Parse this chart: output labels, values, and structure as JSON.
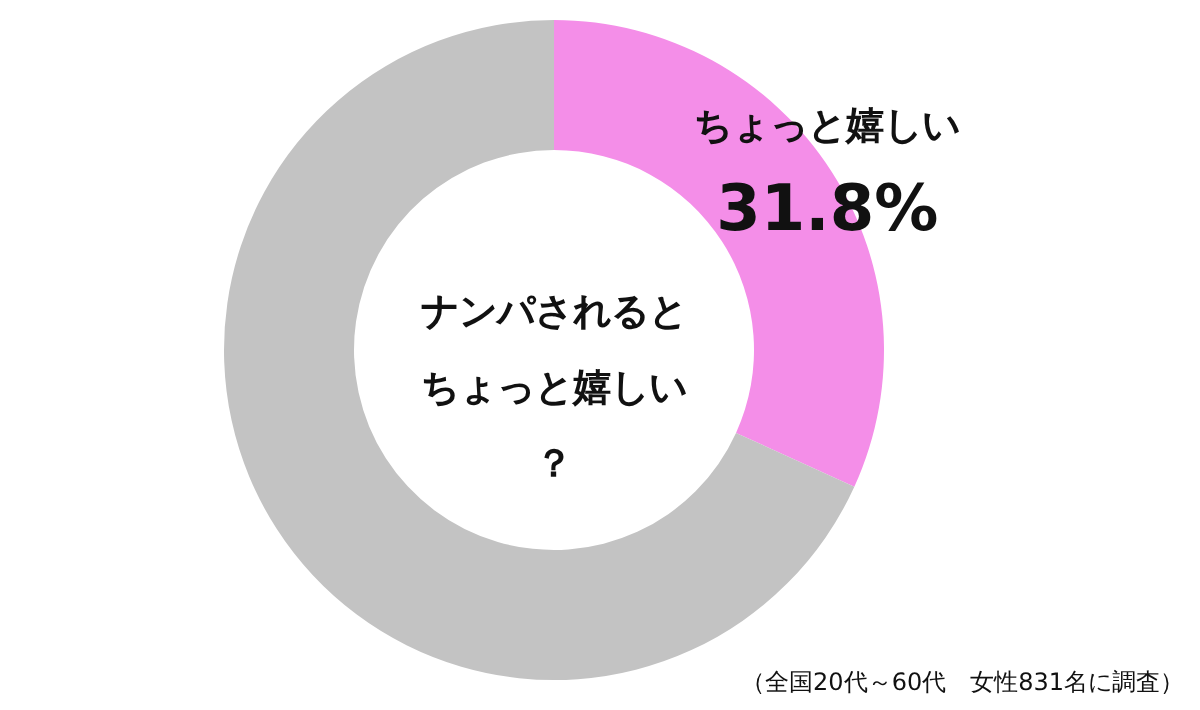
{
  "chart_data": {
    "type": "donut",
    "title": "ナンパされるとちょっと嬉しい？",
    "categories": [
      "ちょっと嬉しい",
      null
    ],
    "values": [
      31.8,
      68.2
    ],
    "colors": [
      "#f48ee8",
      "#c3c3c3"
    ],
    "value_labels": [
      "31.8%",
      null
    ],
    "annotations": [
      "（全国20代～60代　女性831名に調査）"
    ]
  }
}
